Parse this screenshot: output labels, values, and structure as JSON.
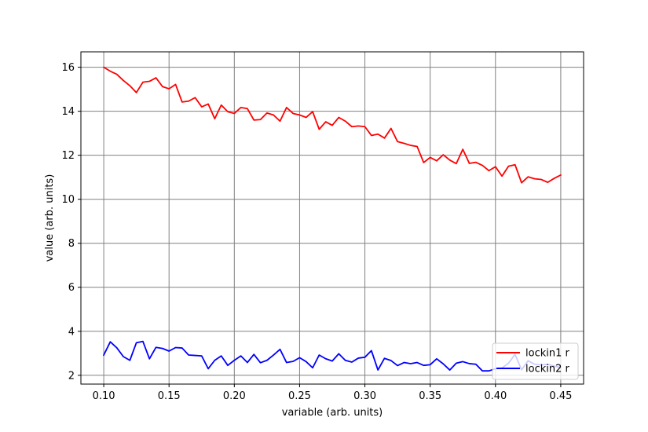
{
  "chart_data": {
    "type": "line",
    "title": "",
    "xlabel": "variable (arb. units)",
    "ylabel": "value (arb. units)",
    "xlim": [
      0.0825,
      0.4675
    ],
    "ylim": [
      1.6,
      16.7
    ],
    "xticks": [
      0.1,
      0.15,
      0.2,
      0.25,
      0.3,
      0.35,
      0.4,
      0.45
    ],
    "xtick_labels": [
      "0.10",
      "0.15",
      "0.20",
      "0.25",
      "0.30",
      "0.35",
      "0.40",
      "0.45"
    ],
    "yticks": [
      2,
      4,
      6,
      8,
      10,
      12,
      14,
      16
    ],
    "ytick_labels": [
      "2",
      "4",
      "6",
      "8",
      "10",
      "12",
      "14",
      "16"
    ],
    "grid": true,
    "legend_position": "lower-right",
    "x": [
      0.1,
      0.105,
      0.11,
      0.115,
      0.12,
      0.125,
      0.13,
      0.135,
      0.14,
      0.145,
      0.15,
      0.155,
      0.16,
      0.165,
      0.17,
      0.175,
      0.18,
      0.185,
      0.19,
      0.195,
      0.2,
      0.205,
      0.21,
      0.215,
      0.22,
      0.225,
      0.23,
      0.235,
      0.24,
      0.245,
      0.25,
      0.255,
      0.26,
      0.265,
      0.27,
      0.275,
      0.28,
      0.285,
      0.29,
      0.295,
      0.3,
      0.305,
      0.31,
      0.315,
      0.32,
      0.325,
      0.33,
      0.335,
      0.34,
      0.345,
      0.35,
      0.355,
      0.36,
      0.365,
      0.37,
      0.375,
      0.38,
      0.385,
      0.39,
      0.395,
      0.4,
      0.405,
      0.41,
      0.415,
      0.42,
      0.425,
      0.43,
      0.435,
      0.44,
      0.445,
      0.45
    ],
    "series": [
      {
        "name": "lockin1 r",
        "color": "#ff0000",
        "values": [
          16.0,
          15.82,
          15.68,
          15.4,
          15.16,
          14.85,
          15.32,
          15.36,
          15.52,
          15.12,
          15.02,
          15.22,
          14.42,
          14.46,
          14.62,
          14.2,
          14.33,
          13.66,
          14.28,
          13.98,
          13.9,
          14.17,
          14.12,
          13.6,
          13.62,
          13.92,
          13.83,
          13.55,
          14.17,
          13.9,
          13.83,
          13.72,
          13.98,
          13.18,
          13.52,
          13.36,
          13.72,
          13.55,
          13.3,
          13.33,
          13.3,
          12.9,
          12.96,
          12.78,
          13.22,
          12.62,
          12.54,
          12.45,
          12.4,
          11.67,
          11.9,
          11.75,
          12.02,
          11.78,
          11.62,
          12.27,
          11.63,
          11.68,
          11.54,
          11.3,
          11.48,
          11.05,
          11.5,
          11.57,
          10.75,
          11.02,
          10.93,
          10.9,
          10.77,
          10.95,
          11.1
        ]
      },
      {
        "name": "lockin2 r",
        "color": "#0000ff",
        "values": [
          2.92,
          3.52,
          3.25,
          2.85,
          2.68,
          3.48,
          3.54,
          2.75,
          3.27,
          3.22,
          3.1,
          3.26,
          3.24,
          2.92,
          2.9,
          2.88,
          2.3,
          2.68,
          2.88,
          2.45,
          2.68,
          2.88,
          2.58,
          2.95,
          2.57,
          2.68,
          2.92,
          3.18,
          2.58,
          2.63,
          2.8,
          2.62,
          2.34,
          2.92,
          2.75,
          2.65,
          2.98,
          2.68,
          2.6,
          2.78,
          2.82,
          3.12,
          2.24,
          2.77,
          2.67,
          2.44,
          2.58,
          2.53,
          2.58,
          2.45,
          2.48,
          2.75,
          2.52,
          2.24,
          2.55,
          2.62,
          2.53,
          2.5,
          2.2,
          2.2,
          2.3,
          2.33,
          2.55,
          2.95,
          2.25,
          2.66,
          2.5,
          2.47,
          2.5,
          2.42,
          2.35
        ]
      }
    ]
  }
}
